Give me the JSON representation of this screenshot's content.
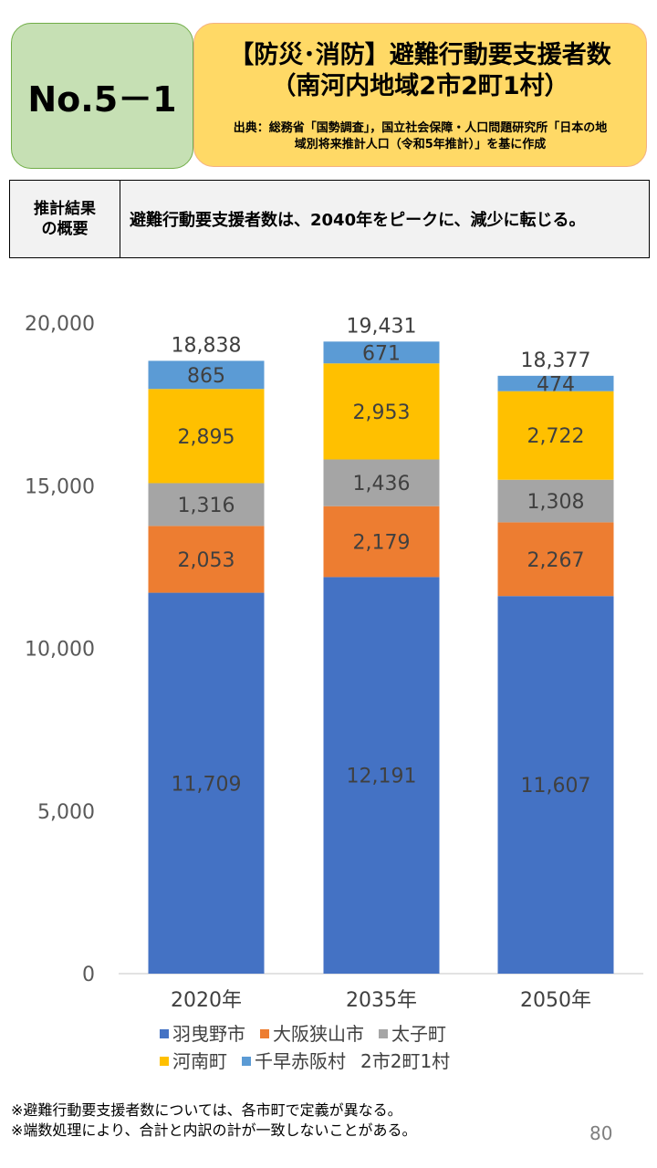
{
  "header": {
    "number": "No.5－1",
    "title_line1": "【防災･消防】避難行動要支援者数",
    "title_line2": "（南河内地域2市2町1村）",
    "source_line1": "出典：総務省「国勢調査」，国立社会保障・人口問題研究所「日本の地",
    "source_line2": "域別将来推計人口（令和5年推計）」を基に作成"
  },
  "summary": {
    "label_line1": "推計結果",
    "label_line2": "の概要",
    "text": "避難行動要支援者数は、2040年をピークに、減少に転じる。"
  },
  "chart_data": {
    "type": "bar",
    "stacked": true,
    "categories": [
      "2020年",
      "2035年",
      "2050年"
    ],
    "series": [
      {
        "name": "羽曳野市",
        "values": [
          11709,
          12191,
          11607
        ],
        "color": "#4472c4"
      },
      {
        "name": "大阪狭山市",
        "values": [
          2053,
          2179,
          2267
        ],
        "color": "#ed7d31"
      },
      {
        "name": "太子町",
        "values": [
          1316,
          1436,
          1308
        ],
        "color": "#a5a5a5"
      },
      {
        "name": "河南町",
        "values": [
          2895,
          2953,
          2722
        ],
        "color": "#ffc000"
      },
      {
        "name": "千早赤阪村",
        "values": [
          865,
          671,
          474
        ],
        "color": "#5b9bd5"
      }
    ],
    "totals": [
      18838,
      19431,
      18377
    ],
    "totals_label": "2市2町1村",
    "ylim": [
      0,
      20000
    ],
    "yticks": [
      0,
      5000,
      10000,
      15000,
      20000
    ],
    "grid": false,
    "legend_position": "bottom"
  },
  "notes": {
    "note1": "※避難行動要支援者数については、各市町で定義が異なる。",
    "note2": "※端数処理により、合計と内訳の計が一致しないことがある。"
  },
  "page_number": "80"
}
